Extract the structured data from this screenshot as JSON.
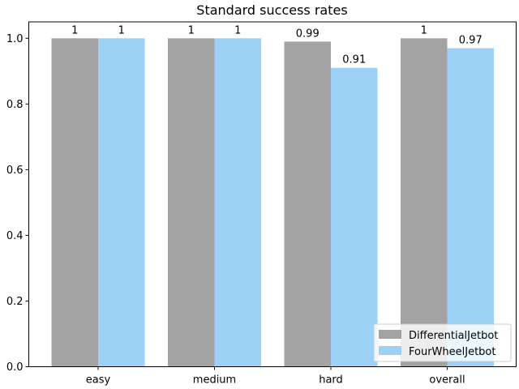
{
  "chart_data": {
    "type": "bar",
    "title": "Standard success rates",
    "xlabel": "",
    "ylabel": "",
    "categories": [
      "easy",
      "medium",
      "hard",
      "overall"
    ],
    "series": [
      {
        "name": "DifferentialJetbot",
        "values": [
          1,
          1,
          0.99,
          1
        ],
        "labels": [
          "1",
          "1",
          "0.99",
          "1"
        ],
        "color": "#a3a3a3"
      },
      {
        "name": "FourWheelJetbot",
        "values": [
          1,
          1,
          0.91,
          0.97
        ],
        "labels": [
          "1",
          "1",
          "0.91",
          "0.97"
        ],
        "color": "#9dd1f5"
      }
    ],
    "ylim": [
      0,
      1.05
    ],
    "yticks": [
      "0.0",
      "0.2",
      "0.4",
      "0.6",
      "0.8",
      "1.0"
    ],
    "grid": false,
    "legend_position": "lower-right"
  }
}
